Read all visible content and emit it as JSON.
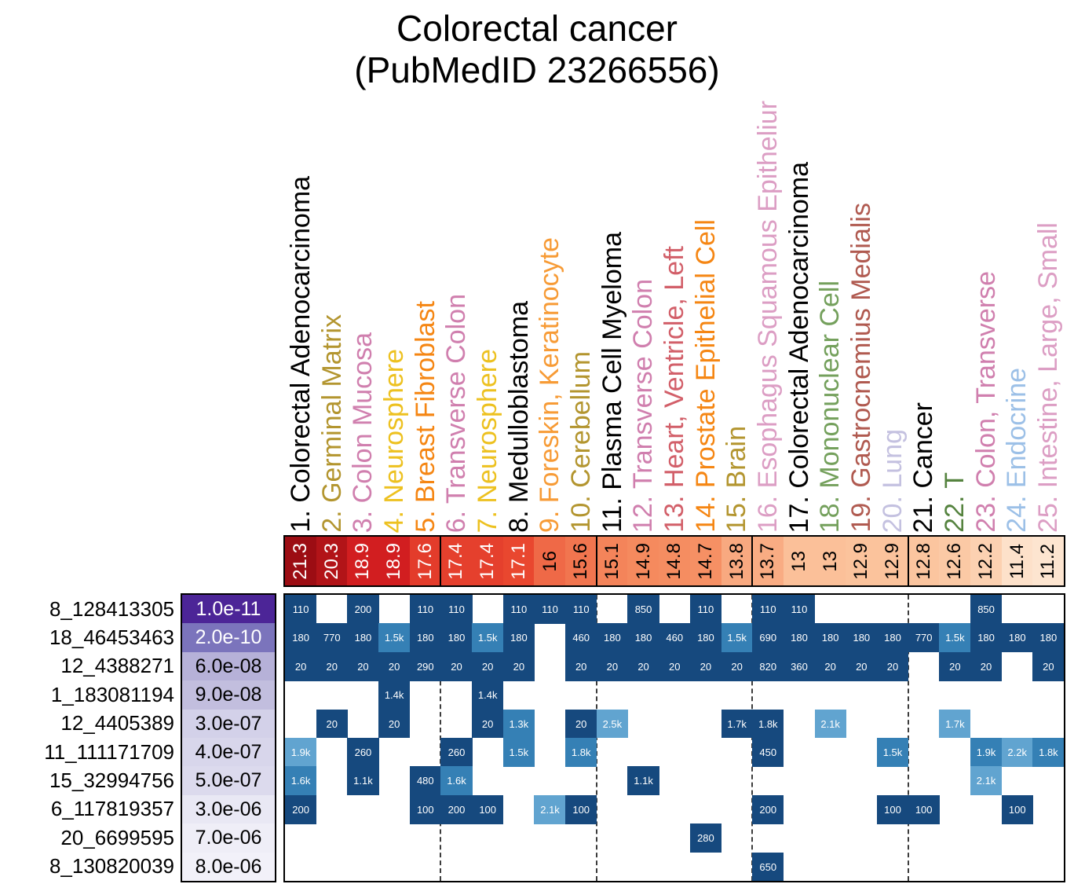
{
  "title": {
    "line1": "Colorectal cancer",
    "line2": "(PubMedID 23266556)"
  },
  "chart_data": {
    "type": "heatmap",
    "title": "Colorectal cancer (PubMedID 23266556)",
    "columns": [
      {
        "label": "1. Colorectal Adenocarcinoma",
        "color": "#000000",
        "score": 21.3,
        "score_label": "21.3"
      },
      {
        "label": "2. Germinal Matrix",
        "color": "#b3952f",
        "score": 20.3,
        "score_label": "20.3"
      },
      {
        "label": "3. Colon Mucosa",
        "color": "#d07fae",
        "score": 18.9,
        "score_label": "18.9"
      },
      {
        "label": "4. Neurosphere",
        "color": "#edc120",
        "score": 18.9,
        "score_label": "18.9"
      },
      {
        "label": "5. Breast Fibroblast",
        "color": "#f58613",
        "score": 17.6,
        "score_label": "17.6"
      },
      {
        "label": "6. Transverse Colon",
        "color": "#d07fae",
        "score": 17.4,
        "score_label": "17.4"
      },
      {
        "label": "7. Neurosphere",
        "color": "#edc120",
        "score": 17.4,
        "score_label": "17.4"
      },
      {
        "label": "8. Medulloblastoma",
        "color": "#000000",
        "score": 17.1,
        "score_label": "17.1"
      },
      {
        "label": "9. Foreskin, Keratinocyte",
        "color": "#f79b36",
        "score": 16,
        "score_label": "16"
      },
      {
        "label": "10. Cerebellum",
        "color": "#b3952f",
        "score": 15.6,
        "score_label": "15.6"
      },
      {
        "label": "11. Plasma Cell Myeloma",
        "color": "#000000",
        "score": 15.1,
        "score_label": "15.1"
      },
      {
        "label": "12. Transverse Colon",
        "color": "#d07fae",
        "score": 14.9,
        "score_label": "14.9"
      },
      {
        "label": "13. Heart, Ventricle, Left",
        "color": "#d25f69",
        "score": 14.8,
        "score_label": "14.8"
      },
      {
        "label": "14. Prostate Epithelial Cell",
        "color": "#f58613",
        "score": 14.7,
        "score_label": "14.7"
      },
      {
        "label": "15. Brain",
        "color": "#b3952f",
        "score": 13.8,
        "score_label": "13.8"
      },
      {
        "label": "16. Esophagus Squamous Epitheliur",
        "color": "#dc9ec4",
        "score": 13.7,
        "score_label": "13.7"
      },
      {
        "label": "17. Colorectal Adenocarcinoma",
        "color": "#000000",
        "score": 13,
        "score_label": "13"
      },
      {
        "label": "18. Mononuclear Cell",
        "color": "#74a05c",
        "score": 13,
        "score_label": "13"
      },
      {
        "label": "19. Gastrocnemius Medialis",
        "color": "#b05a50",
        "score": 12.9,
        "score_label": "12.9"
      },
      {
        "label": "20. Lung",
        "color": "#c4c1e0",
        "score": 12.9,
        "score_label": "12.9"
      },
      {
        "label": "21. Cancer",
        "color": "#000000",
        "score": 12.8,
        "score_label": "12.8"
      },
      {
        "label": "22. T",
        "color": "#55833f",
        "score": 12.6,
        "score_label": "12.6"
      },
      {
        "label": "23. Colon, Transverse",
        "color": "#d07fae",
        "score": 12.2,
        "score_label": "12.2"
      },
      {
        "label": "24. Endocrine",
        "color": "#9cc0e7",
        "score": 11.4,
        "score_label": "11.4"
      },
      {
        "label": "25. Intestine, Large, Small",
        "color": "#dc9ec4",
        "score": 11.2,
        "score_label": "11.2"
      }
    ],
    "group_separators_after": [
      5,
      10,
      15,
      20
    ],
    "cell_level_colors": [
      "#16497e",
      "#3580b5",
      "#61a4d0"
    ],
    "score_gradient_stops": [
      [
        11.2,
        "#fde5d0"
      ],
      [
        12.9,
        "#fbc39c"
      ],
      [
        14.9,
        "#f58a5e"
      ],
      [
        17.1,
        "#e9472f"
      ],
      [
        18.9,
        "#d21e20"
      ],
      [
        21.3,
        "#9c0d13"
      ]
    ],
    "score_white_text_min": 17,
    "rows": [
      {
        "label": "8_128413305",
        "pvalue": "1.0e-11",
        "pvalue_color": "#4c2597",
        "pvalue_text_color": "#ffffff",
        "cells": [
          [
            1,
            "110",
            0
          ],
          [
            3,
            "200",
            0
          ],
          [
            5,
            "110",
            0
          ],
          [
            6,
            "110",
            0
          ],
          [
            8,
            "110",
            0
          ],
          [
            9,
            "110",
            0
          ],
          [
            10,
            "110",
            0
          ],
          [
            12,
            "850",
            0
          ],
          [
            14,
            "110",
            0
          ],
          [
            16,
            "110",
            0
          ],
          [
            17,
            "110",
            0
          ],
          [
            23,
            "850",
            0
          ]
        ]
      },
      {
        "label": "18_46453463",
        "pvalue": "2.0e-10",
        "pvalue_color": "#7b74bc",
        "pvalue_text_color": "#ffffff",
        "cells": [
          [
            1,
            "180",
            0
          ],
          [
            2,
            "770",
            0
          ],
          [
            3,
            "180",
            0
          ],
          [
            4,
            "1.5k",
            1
          ],
          [
            5,
            "180",
            0
          ],
          [
            6,
            "180",
            0
          ],
          [
            7,
            "1.5k",
            1
          ],
          [
            8,
            "180",
            0
          ],
          [
            10,
            "460",
            0
          ],
          [
            11,
            "180",
            0
          ],
          [
            12,
            "180",
            0
          ],
          [
            13,
            "460",
            0
          ],
          [
            14,
            "180",
            0
          ],
          [
            15,
            "1.5k",
            1
          ],
          [
            16,
            "690",
            0
          ],
          [
            17,
            "180",
            0
          ],
          [
            18,
            "180",
            0
          ],
          [
            19,
            "180",
            0
          ],
          [
            20,
            "180",
            0
          ],
          [
            21,
            "770",
            0
          ],
          [
            22,
            "1.5k",
            1
          ],
          [
            23,
            "180",
            0
          ],
          [
            24,
            "180",
            0
          ],
          [
            25,
            "180",
            0
          ]
        ]
      },
      {
        "label": "12_4388271",
        "pvalue": "6.0e-08",
        "pvalue_color": "#b6b1d8",
        "pvalue_text_color": "#000000",
        "cells": [
          [
            1,
            "20",
            0
          ],
          [
            2,
            "20",
            0
          ],
          [
            3,
            "20",
            0
          ],
          [
            4,
            "20",
            0
          ],
          [
            5,
            "290",
            0
          ],
          [
            6,
            "20",
            0
          ],
          [
            7,
            "20",
            0
          ],
          [
            8,
            "20",
            0
          ],
          [
            10,
            "20",
            0
          ],
          [
            11,
            "20",
            0
          ],
          [
            12,
            "20",
            0
          ],
          [
            13,
            "20",
            0
          ],
          [
            14,
            "20",
            0
          ],
          [
            15,
            "20",
            0
          ],
          [
            16,
            "820",
            0
          ],
          [
            17,
            "360",
            0
          ],
          [
            18,
            "20",
            0
          ],
          [
            19,
            "20",
            0
          ],
          [
            20,
            "20",
            0
          ],
          [
            22,
            "20",
            0
          ],
          [
            23,
            "20",
            0
          ],
          [
            25,
            "20",
            0
          ]
        ]
      },
      {
        "label": "1_183081194",
        "pvalue": "9.0e-08",
        "pvalue_color": "#c2bede",
        "pvalue_text_color": "#000000",
        "cells": [
          [
            4,
            "1.4k",
            0
          ],
          [
            7,
            "1.4k",
            0
          ]
        ]
      },
      {
        "label": "12_4405389",
        "pvalue": "3.0e-07",
        "pvalue_color": "#d3d1e9",
        "pvalue_text_color": "#000000",
        "cells": [
          [
            2,
            "20",
            0
          ],
          [
            4,
            "20",
            0
          ],
          [
            7,
            "20",
            0
          ],
          [
            8,
            "1.3k",
            1
          ],
          [
            10,
            "20",
            0
          ],
          [
            11,
            "2.5k",
            2
          ],
          [
            15,
            "1.7k",
            0
          ],
          [
            16,
            "1.8k",
            0
          ],
          [
            18,
            "2.1k",
            2
          ],
          [
            22,
            "1.7k",
            2
          ]
        ]
      },
      {
        "label": "11_111171709",
        "pvalue": "4.0e-07",
        "pvalue_color": "#d8d6eb",
        "pvalue_text_color": "#000000",
        "cells": [
          [
            1,
            "1.9k",
            2
          ],
          [
            3,
            "260",
            0
          ],
          [
            6,
            "260",
            0
          ],
          [
            8,
            "1.5k",
            1
          ],
          [
            10,
            "1.8k",
            1
          ],
          [
            16,
            "450",
            0
          ],
          [
            20,
            "1.5k",
            1
          ],
          [
            23,
            "1.9k",
            1
          ],
          [
            24,
            "2.2k",
            2
          ],
          [
            25,
            "1.8k",
            1
          ]
        ]
      },
      {
        "label": "15_32994756",
        "pvalue": "5.0e-07",
        "pvalue_color": "#dcdaed",
        "pvalue_text_color": "#000000",
        "cells": [
          [
            1,
            "1.6k",
            1
          ],
          [
            3,
            "1.1k",
            0
          ],
          [
            5,
            "480",
            0
          ],
          [
            6,
            "1.6k",
            1
          ],
          [
            12,
            "1.1k",
            0
          ],
          [
            23,
            "2.1k",
            2
          ]
        ]
      },
      {
        "label": "6_117819357",
        "pvalue": "3.0e-06",
        "pvalue_color": "#e9e8f4",
        "pvalue_text_color": "#000000",
        "cells": [
          [
            1,
            "200",
            0
          ],
          [
            5,
            "100",
            0
          ],
          [
            6,
            "200",
            0
          ],
          [
            7,
            "100",
            0
          ],
          [
            9,
            "2.1k",
            2
          ],
          [
            10,
            "100",
            0
          ],
          [
            16,
            "200",
            0
          ],
          [
            20,
            "100",
            0
          ],
          [
            21,
            "100",
            0
          ],
          [
            24,
            "100",
            0
          ]
        ]
      },
      {
        "label": "20_6699595",
        "pvalue": "7.0e-06",
        "pvalue_color": "#efeef7",
        "pvalue_text_color": "#000000",
        "cells": [
          [
            14,
            "280",
            0
          ]
        ]
      },
      {
        "label": "8_130820039",
        "pvalue": "8.0e-06",
        "pvalue_color": "#f2f1f9",
        "pvalue_text_color": "#000000",
        "cells": [
          [
            16,
            "650",
            0
          ]
        ]
      }
    ]
  }
}
